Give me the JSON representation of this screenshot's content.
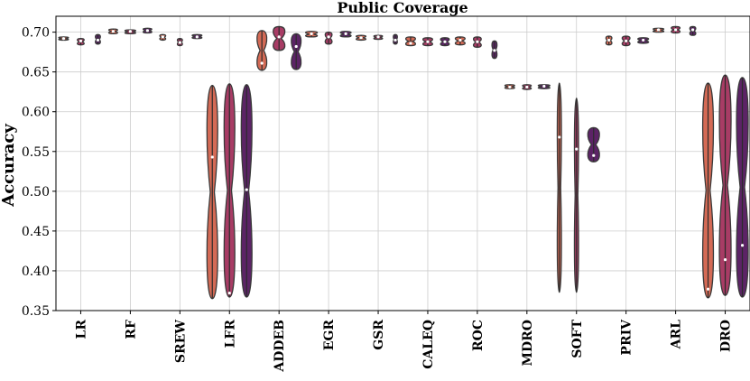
{
  "chart_data": {
    "type": "violin",
    "title": "Public Coverage",
    "xlabel": "",
    "ylabel": "Accuracy",
    "ylim": [
      0.35,
      0.72
    ],
    "yticks": [
      "0.35",
      "0.40",
      "0.45",
      "0.50",
      "0.55",
      "0.60",
      "0.65",
      "0.70"
    ],
    "grid": true,
    "categories": [
      "LR",
      "RF",
      "SREW",
      "LFR",
      "ADDEB",
      "EGR",
      "GSR",
      "CALEQ",
      "ROC",
      "MDRO",
      "SOFT",
      "PRIV",
      "ARL",
      "DRO"
    ],
    "series_colors": [
      "#d46a55",
      "#a83c65",
      "#5c2366"
    ],
    "violins": [
      [
        {
          "lo": 0.69,
          "hi": 0.694,
          "median": 0.692,
          "w": 0.5
        },
        {
          "lo": 0.684,
          "hi": 0.692,
          "median": 0.689,
          "w": 0.35
        },
        {
          "lo": 0.685,
          "hi": 0.697,
          "median": 0.69,
          "w": 0.25
        }
      ],
      [
        {
          "lo": 0.698,
          "hi": 0.704,
          "median": 0.701,
          "w": 0.45
        },
        {
          "lo": 0.698,
          "hi": 0.703,
          "median": 0.701,
          "w": 0.55
        },
        {
          "lo": 0.699,
          "hi": 0.705,
          "median": 0.702,
          "w": 0.45
        }
      ],
      [
        {
          "lo": 0.69,
          "hi": 0.697,
          "median": 0.694,
          "w": 0.3
        },
        {
          "lo": 0.683,
          "hi": 0.692,
          "median": 0.687,
          "w": 0.25
        },
        {
          "lo": 0.692,
          "hi": 0.697,
          "median": 0.694,
          "w": 0.5
        }
      ],
      [
        {
          "lo": 0.365,
          "hi": 0.633,
          "median": 0.543,
          "w": 0.55
        },
        {
          "lo": 0.367,
          "hi": 0.635,
          "median": 0.372,
          "w": 0.55
        },
        {
          "lo": 0.367,
          "hi": 0.634,
          "median": 0.502,
          "w": 0.55
        }
      ],
      [
        {
          "lo": 0.652,
          "hi": 0.702,
          "median": 0.661,
          "w": 0.5
        },
        {
          "lo": 0.677,
          "hi": 0.707,
          "median": 0.694,
          "w": 0.6
        },
        {
          "lo": 0.653,
          "hi": 0.698,
          "median": 0.682,
          "w": 0.5
        }
      ],
      [
        {
          "lo": 0.694,
          "hi": 0.701,
          "median": 0.698,
          "w": 0.6
        },
        {
          "lo": 0.685,
          "hi": 0.7,
          "median": 0.694,
          "w": 0.35
        },
        {
          "lo": 0.694,
          "hi": 0.701,
          "median": 0.698,
          "w": 0.55
        }
      ],
      [
        {
          "lo": 0.69,
          "hi": 0.696,
          "median": 0.693,
          "w": 0.5
        },
        {
          "lo": 0.691,
          "hi": 0.696,
          "median": 0.694,
          "w": 0.45
        },
        {
          "lo": 0.685,
          "hi": 0.697,
          "median": 0.69,
          "w": 0.2
        }
      ],
      [
        {
          "lo": 0.683,
          "hi": 0.694,
          "median": 0.686,
          "w": 0.5
        },
        {
          "lo": 0.683,
          "hi": 0.693,
          "median": 0.688,
          "w": 0.5
        },
        {
          "lo": 0.683,
          "hi": 0.693,
          "median": 0.688,
          "w": 0.45
        }
      ],
      [
        {
          "lo": 0.684,
          "hi": 0.694,
          "median": 0.69,
          "w": 0.5
        },
        {
          "lo": 0.681,
          "hi": 0.694,
          "median": 0.688,
          "w": 0.4
        },
        {
          "lo": 0.667,
          "hi": 0.689,
          "median": 0.677,
          "w": 0.25
        }
      ],
      [
        {
          "lo": 0.629,
          "hi": 0.634,
          "median": 0.631,
          "w": 0.5
        },
        {
          "lo": 0.628,
          "hi": 0.634,
          "median": 0.631,
          "w": 0.45
        },
        {
          "lo": 0.629,
          "hi": 0.634,
          "median": 0.632,
          "w": 0.6
        }
      ],
      [
        {
          "lo": 0.373,
          "hi": 0.636,
          "median": 0.568,
          "w": 0.2
        },
        {
          "lo": 0.373,
          "hi": 0.617,
          "median": 0.553,
          "w": 0.2
        },
        {
          "lo": 0.537,
          "hi": 0.58,
          "median": 0.545,
          "w": 0.6
        }
      ],
      [
        {
          "lo": 0.684,
          "hi": 0.695,
          "median": 0.69,
          "w": 0.3
        },
        {
          "lo": 0.683,
          "hi": 0.695,
          "median": 0.689,
          "w": 0.4
        },
        {
          "lo": 0.686,
          "hi": 0.693,
          "median": 0.69,
          "w": 0.55
        }
      ],
      [
        {
          "lo": 0.7,
          "hi": 0.705,
          "median": 0.703,
          "w": 0.55
        },
        {
          "lo": 0.699,
          "hi": 0.707,
          "median": 0.703,
          "w": 0.45
        },
        {
          "lo": 0.696,
          "hi": 0.707,
          "median": 0.703,
          "w": 0.3
        }
      ],
      [
        {
          "lo": 0.366,
          "hi": 0.636,
          "median": 0.377,
          "w": 0.55
        },
        {
          "lo": 0.369,
          "hi": 0.646,
          "median": 0.414,
          "w": 0.6
        },
        {
          "lo": 0.367,
          "hi": 0.643,
          "median": 0.432,
          "w": 0.6
        }
      ]
    ]
  }
}
